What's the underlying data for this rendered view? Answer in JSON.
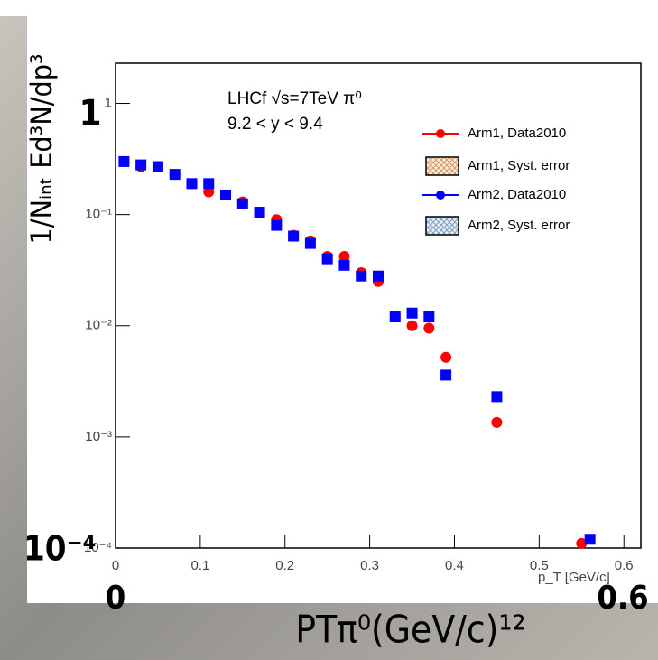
{
  "chart_data": {
    "type": "scatter",
    "log_y": true,
    "x_label": "p_T [GeV/c]",
    "y_label": "1/Nᵢₙₜ Ed³N/dp³",
    "annotations": [
      "LHCf √s=7TeV π⁰",
      "9.2 < y < 9.4"
    ],
    "xlim": [
      0,
      0.62
    ],
    "ylim": [
      0.0001,
      2.3
    ],
    "xticks": [
      0,
      0.1,
      0.2,
      0.3,
      0.4,
      0.5,
      0.6
    ],
    "yticks": [
      {
        "value": 0.0001,
        "label": "10⁻⁴"
      },
      {
        "value": 0.001,
        "label": "10⁻³"
      },
      {
        "value": 0.01,
        "label": "10⁻²"
      },
      {
        "value": 0.1,
        "label": "10⁻¹"
      },
      1
    ],
    "series": [
      {
        "name": "Arm1, Data2010",
        "color": "#ff0000",
        "marker": "circle",
        "x": [
          0.01,
          0.03,
          0.05,
          0.07,
          0.09,
          0.11,
          0.13,
          0.15,
          0.17,
          0.19,
          0.21,
          0.23,
          0.25,
          0.27,
          0.29,
          0.31,
          0.33,
          0.35,
          0.37,
          0.39,
          0.45,
          0.55
        ],
        "values": [
          0.3,
          0.27,
          0.27,
          0.23,
          0.19,
          0.16,
          0.15,
          0.13,
          0.105,
          0.09,
          0.065,
          0.058,
          0.042,
          0.042,
          0.03,
          0.025,
          0.012,
          0.01,
          0.0095,
          0.0052,
          0.00135,
          0.00011
        ]
      },
      {
        "name": "Arm2, Data2010",
        "color": "#0000ff",
        "marker": "square",
        "x": [
          0.01,
          0.03,
          0.05,
          0.07,
          0.09,
          0.11,
          0.13,
          0.15,
          0.17,
          0.19,
          0.21,
          0.23,
          0.25,
          0.27,
          0.29,
          0.31,
          0.33,
          0.35,
          0.37,
          0.39,
          0.45,
          0.56
        ],
        "values": [
          0.3,
          0.28,
          0.27,
          0.23,
          0.19,
          0.19,
          0.15,
          0.125,
          0.105,
          0.08,
          0.064,
          0.055,
          0.04,
          0.035,
          0.028,
          0.028,
          0.012,
          0.013,
          0.012,
          0.0036,
          0.0023,
          0.00012
        ]
      }
    ],
    "syst_legend": [
      {
        "name": "Arm1, Syst. error",
        "color": "#d9955a"
      },
      {
        "name": "Arm2, Syst. error",
        "color": "#7f9fbf"
      }
    ],
    "overlay_labels": [
      "1",
      "10⁻⁴",
      "0",
      "0.6",
      "PTπ⁰(GeV/c)¹²"
    ]
  }
}
